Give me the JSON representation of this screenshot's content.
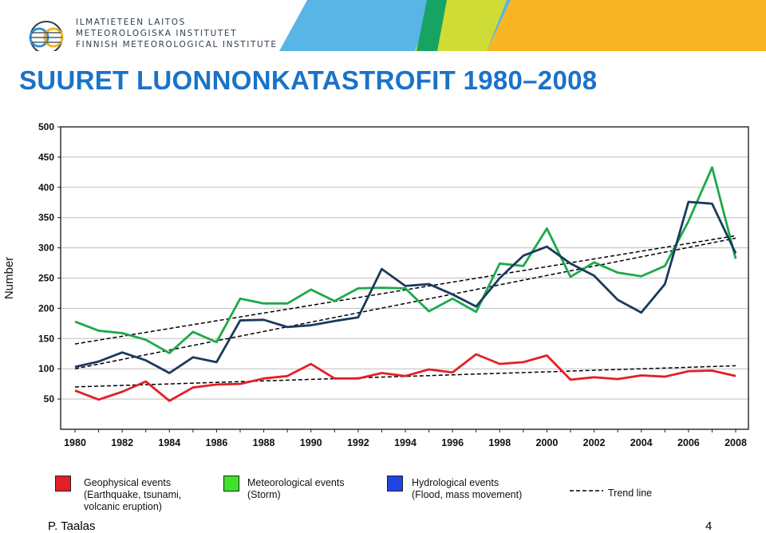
{
  "header": {
    "logo_lines": [
      "ILMATIETEEN LAITOS",
      "METEOROLOGISKA INSTITUTET",
      "FINNISH METEOROLOGICAL INSTITUTE"
    ],
    "banner_colors": [
      "#59b5e6",
      "#17a463",
      "#cfdc35",
      "#fab525"
    ]
  },
  "slide": {
    "title": "SUURET LUONNONKATASTROFIT 1980–2008",
    "author": "P. Taalas",
    "page_number": "4"
  },
  "legend": {
    "geophysical": {
      "line1": "Geophysical events",
      "line2": "(Earthquake, tsunami,",
      "line3": "volcanic eruption)"
    },
    "meteorological": {
      "line1": "Meteorological events",
      "line2": "(Storm)"
    },
    "hydrological": {
      "line1": "Hydrological events",
      "line2": "(Flood, mass movement)"
    },
    "trend": {
      "label": "Trend line"
    }
  },
  "chart_data": {
    "type": "line",
    "ylabel": "Number",
    "xlabel": "",
    "ylim": [
      0,
      500
    ],
    "xlim": [
      1980,
      2008
    ],
    "yticks": [
      50,
      100,
      150,
      200,
      250,
      300,
      350,
      400,
      450,
      500
    ],
    "xticks": [
      1980,
      1982,
      1984,
      1986,
      1988,
      1990,
      1992,
      1994,
      1996,
      1998,
      2000,
      2002,
      2004,
      2006,
      2008
    ],
    "grid": "horizontal",
    "x": [
      1980,
      1981,
      1982,
      1983,
      1984,
      1985,
      1986,
      1987,
      1988,
      1989,
      1990,
      1991,
      1992,
      1993,
      1994,
      1995,
      1996,
      1997,
      1998,
      1999,
      2000,
      2001,
      2002,
      2003,
      2004,
      2005,
      2006,
      2007,
      2008
    ],
    "series": [
      {
        "name": "Geophysical events",
        "color": "#e31f26",
        "values": [
          64,
          49,
          62,
          79,
          47,
          69,
          74,
          75,
          84,
          88,
          108,
          84,
          84,
          93,
          88,
          99,
          94,
          124,
          108,
          111,
          122,
          82,
          86,
          83,
          89,
          87,
          96,
          97,
          88
        ]
      },
      {
        "name": "Meteorological events",
        "color": "#1ea84a",
        "values": [
          178,
          163,
          159,
          148,
          126,
          161,
          144,
          216,
          208,
          208,
          231,
          212,
          233,
          234,
          233,
          195,
          216,
          194,
          274,
          270,
          332,
          252,
          276,
          259,
          253,
          270,
          344,
          433,
          282
        ]
      },
      {
        "name": "Hydrological events",
        "color": "#1b3a5e",
        "values": [
          103,
          112,
          127,
          114,
          93,
          119,
          111,
          180,
          181,
          169,
          172,
          179,
          185,
          265,
          237,
          240,
          223,
          203,
          250,
          287,
          302,
          274,
          254,
          214,
          193,
          240,
          376,
          373,
          291
        ]
      }
    ],
    "trend_lines": [
      {
        "name": "Trend line",
        "from": [
          1980,
          141
        ],
        "to": [
          2008,
          320
        ]
      },
      {
        "name": "Trend line",
        "from": [
          1980,
          100
        ],
        "to": [
          2008,
          316
        ]
      },
      {
        "name": "Trend line",
        "from": [
          1980,
          70
        ],
        "to": [
          2008,
          105
        ]
      }
    ]
  }
}
